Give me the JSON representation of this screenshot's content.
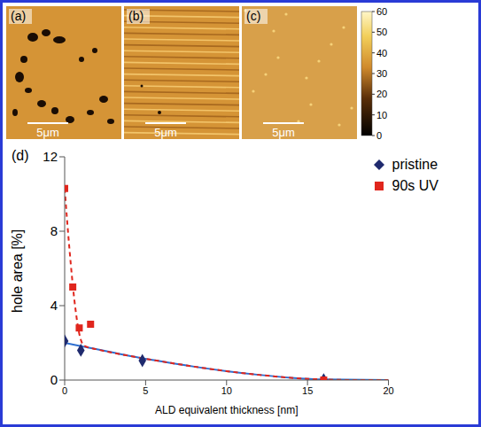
{
  "images": [
    {
      "label": "(a)",
      "scale_bar": "5μm"
    },
    {
      "label": "(b)",
      "scale_bar": "5μm"
    },
    {
      "label": "(c)",
      "scale_bar": "5μm"
    }
  ],
  "color_bar": {
    "range": [
      0,
      60
    ],
    "ticks": [
      0,
      10,
      20,
      30,
      40,
      50,
      60
    ]
  },
  "chart_data": {
    "type": "scatter",
    "panel": "(d)",
    "x_label": "ALD equivalent thickness [nm]",
    "y_label": "hole area [%]",
    "xlim": [
      0,
      20
    ],
    "xticks": [
      0,
      5,
      10,
      15,
      20
    ],
    "ylim": [
      0,
      12
    ],
    "yticks": [
      0,
      4,
      8,
      12
    ],
    "grid": false,
    "legend": "upper right",
    "series": [
      {
        "name": "pristine",
        "color": "#1f2a6e",
        "marker": "diamond",
        "line_style": "solid",
        "x": [
          0,
          1,
          4.8,
          16
        ],
        "values": [
          2.1,
          1.6,
          1.05,
          0.02
        ],
        "fit": {
          "color": "#2e6fd0",
          "x": [
            0,
            2,
            4,
            6,
            8,
            10,
            12,
            14,
            16,
            20
          ],
          "values": [
            2.0,
            1.65,
            1.3,
            1.0,
            0.72,
            0.48,
            0.28,
            0.12,
            0.03,
            0
          ]
        }
      },
      {
        "name": "90s UV",
        "color": "#e0261d",
        "marker": "square",
        "line_style": "dashed",
        "x": [
          0,
          0.5,
          0.9,
          1.6,
          16
        ],
        "values": [
          10.3,
          5.0,
          2.8,
          3.0,
          0
        ],
        "fit": {
          "color": "#e0261d",
          "x": [
            0,
            0.3,
            0.6,
            0.9,
            1.2,
            2,
            4,
            6,
            8,
            10,
            12,
            14,
            16,
            18,
            20
          ],
          "values": [
            10.3,
            7.0,
            4.3,
            2.5,
            1.85,
            1.65,
            1.3,
            1.0,
            0.72,
            0.48,
            0.28,
            0.12,
            0.03,
            0,
            0
          ]
        }
      }
    ]
  }
}
